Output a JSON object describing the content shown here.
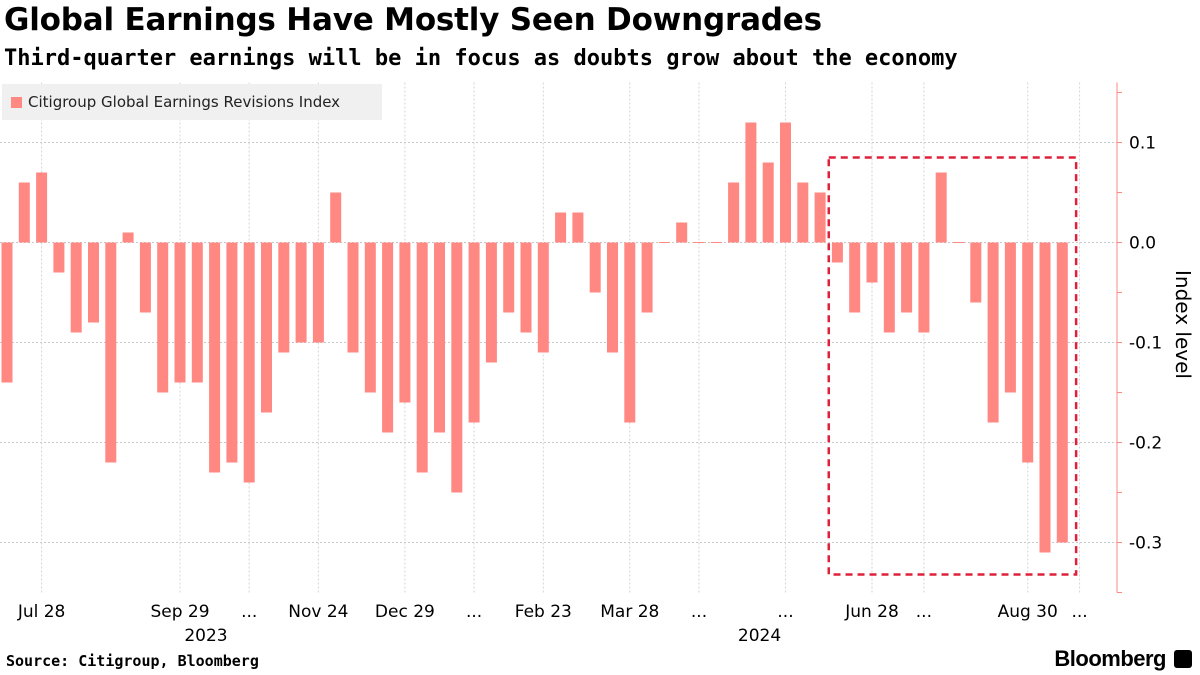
{
  "title": "Global Earnings Have Mostly Seen Downgrades",
  "subtitle": "Third-quarter earnings will be in focus as doubts grow about the economy",
  "source": "Source: Citigroup, Bloomberg",
  "brand": "Bloomberg",
  "colors": {
    "bar": "#ff8883",
    "highlight": "#e0203a",
    "grid": "#cccccc",
    "axis": "#ff8883"
  },
  "chart_data": {
    "type": "bar",
    "legend": [
      "Citigroup Global Earnings Revisions Index"
    ],
    "ylabel": "Index level",
    "ylim": [
      -0.35,
      0.16
    ],
    "yticks": [
      0.1,
      0.0,
      -0.1,
      -0.2,
      -0.3
    ],
    "ytick_labels": [
      "0.1",
      "0.0",
      "-0.1",
      "-0.2",
      "-0.3"
    ],
    "values": [
      -0.14,
      0.06,
      0.07,
      -0.03,
      -0.09,
      -0.08,
      -0.22,
      0.01,
      -0.07,
      -0.15,
      -0.14,
      -0.14,
      -0.23,
      -0.22,
      -0.24,
      -0.17,
      -0.11,
      -0.1,
      -0.1,
      0.05,
      -0.11,
      -0.15,
      -0.19,
      -0.16,
      -0.23,
      -0.19,
      -0.25,
      -0.18,
      -0.12,
      -0.07,
      -0.09,
      -0.11,
      0.03,
      0.03,
      -0.05,
      -0.11,
      -0.18,
      -0.07,
      0.0,
      0.02,
      0.0,
      0.0,
      0.06,
      0.12,
      0.08,
      0.12,
      0.06,
      0.05,
      -0.02,
      -0.07,
      -0.04,
      -0.09,
      -0.07,
      -0.09,
      0.07,
      0.0,
      -0.06,
      -0.18,
      -0.15,
      -0.22,
      -0.31,
      -0.3
    ],
    "x_tick_labels": [
      {
        "label": "Jul 28",
        "index": 2
      },
      {
        "label": "Sep 29",
        "index": 10
      },
      {
        "label": "...",
        "index": 14
      },
      {
        "label": "Nov 24",
        "index": 18
      },
      {
        "label": "Dec 29",
        "index": 23
      },
      {
        "label": "...",
        "index": 27
      },
      {
        "label": "Feb 23",
        "index": 31
      },
      {
        "label": "Mar 28",
        "index": 36
      },
      {
        "label": "...",
        "index": 40
      },
      {
        "label": "...",
        "index": 45
      },
      {
        "label": "Jun 28",
        "index": 50
      },
      {
        "label": "...",
        "index": 53
      },
      {
        "label": "Aug 30",
        "index": 59
      },
      {
        "label": "...",
        "index": 62
      }
    ],
    "year_labels": [
      {
        "label": "2023",
        "index": 11.5
      },
      {
        "label": "2024",
        "index": 43.5
      }
    ],
    "highlight_box": {
      "start_index": 47.5,
      "end_index": 61.8,
      "y_top": 0.085,
      "y_bottom": -0.332
    }
  }
}
